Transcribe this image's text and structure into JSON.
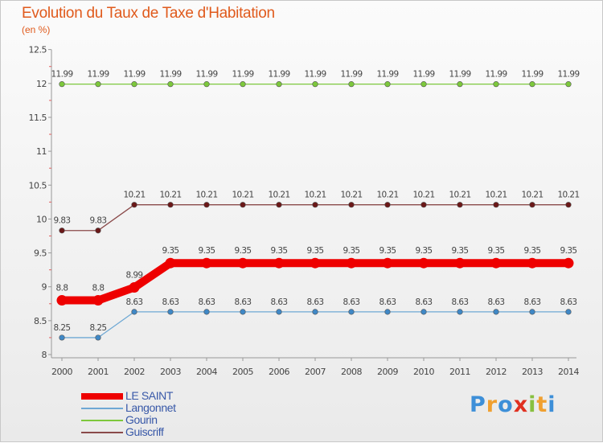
{
  "header": {
    "title": "Evolution du Taux de Taxe d'Habitation",
    "subtitle": "(en %)"
  },
  "chart_data": {
    "type": "line",
    "title": "Evolution du Taux de Taxe d'Habitation",
    "ylabel": "(en %)",
    "xlabel": "",
    "ylim": [
      8,
      12.5
    ],
    "yticks": [
      8,
      8.5,
      9,
      9.5,
      10,
      10.5,
      11,
      11.5,
      12,
      12.5
    ],
    "ytick_labels": [
      "8",
      "8.5",
      "9",
      "9.5",
      "10",
      "10.5",
      "11",
      "11.5",
      "12",
      "12.5"
    ],
    "x": [
      "2000",
      "2001",
      "2002",
      "2003",
      "2004",
      "2005",
      "2006",
      "2007",
      "2008",
      "2009",
      "2010",
      "2011",
      "2012",
      "2013",
      "2014"
    ],
    "grid": false,
    "legend_position": "bottom-left",
    "series": [
      {
        "name": "Gourin",
        "color": "#7dc83c",
        "dot": "#7dc83c",
        "bold": false,
        "values": [
          11.99,
          11.99,
          11.99,
          11.99,
          11.99,
          11.99,
          11.99,
          11.99,
          11.99,
          11.99,
          11.99,
          11.99,
          11.99,
          11.99,
          11.99
        ],
        "labels": [
          "11.99",
          "11.99",
          "11.99",
          "11.99",
          "11.99",
          "11.99",
          "11.99",
          "11.99",
          "11.99",
          "11.99",
          "11.99",
          "11.99",
          "11.99",
          "11.99",
          "11.99"
        ]
      },
      {
        "name": "Guiscriff",
        "color": "#8a4a4a",
        "dot": "#6b1818",
        "bold": false,
        "values": [
          9.83,
          9.83,
          10.21,
          10.21,
          10.21,
          10.21,
          10.21,
          10.21,
          10.21,
          10.21,
          10.21,
          10.21,
          10.21,
          10.21,
          10.21
        ],
        "labels": [
          "9.83",
          "9.83",
          "10.21",
          "10.21",
          "10.21",
          "10.21",
          "10.21",
          "10.21",
          "10.21",
          "10.21",
          "10.21",
          "10.21",
          "10.21",
          "10.21",
          "10.21"
        ]
      },
      {
        "name": "Langonnet",
        "color": "#6ea8d4",
        "dot": "#3f88c6",
        "bold": false,
        "values": [
          8.25,
          8.25,
          8.63,
          8.63,
          8.63,
          8.63,
          8.63,
          8.63,
          8.63,
          8.63,
          8.63,
          8.63,
          8.63,
          8.63,
          8.63
        ],
        "labels": [
          "8.25",
          "8.25",
          "8.63",
          "8.63",
          "8.63",
          "8.63",
          "8.63",
          "8.63",
          "8.63",
          "8.63",
          "8.63",
          "8.63",
          "8.63",
          "8.63",
          "8.63"
        ]
      },
      {
        "name": "LE SAINT",
        "color": "#ee0000",
        "dot": "#ee0000",
        "bold": true,
        "values": [
          8.8,
          8.8,
          8.99,
          9.35,
          9.35,
          9.35,
          9.35,
          9.35,
          9.35,
          9.35,
          9.35,
          9.35,
          9.35,
          9.35,
          9.35
        ],
        "labels": [
          "8.8",
          "8.8",
          "8.99",
          "9.35",
          "9.35",
          "9.35",
          "9.35",
          "9.35",
          "9.35",
          "9.35",
          "9.35",
          "9.35",
          "9.35",
          "9.35",
          "9.35"
        ]
      }
    ]
  },
  "legend": {
    "items": [
      {
        "label": "LE SAINT",
        "color": "#ee0000",
        "bold": true
      },
      {
        "label": "Langonnet",
        "color": "#6ea8d4",
        "bold": false
      },
      {
        "label": "Gourin",
        "color": "#7dc83c",
        "bold": false
      },
      {
        "label": "Guiscriff",
        "color": "#8a4a4a",
        "bold": false
      }
    ]
  },
  "logo": {
    "text": "Proxiti",
    "letters": [
      "P",
      "r",
      "o",
      "x",
      "i",
      "t",
      "i"
    ],
    "colors": [
      "#3d8fd8",
      "#f0a030",
      "#3d8fd8",
      "#e03020",
      "#88c040",
      "#f0a030",
      "#3d8fd8"
    ]
  }
}
